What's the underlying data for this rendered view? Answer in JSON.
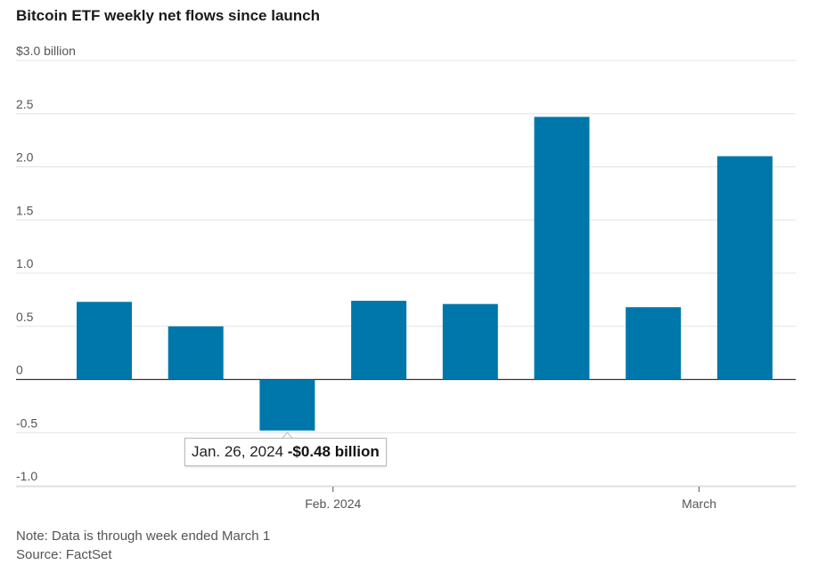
{
  "chart_data": {
    "type": "bar",
    "title": "Bitcoin ETF weekly net flows since launch",
    "ylabel": "$ billion",
    "ylim": [
      -1.0,
      3.0
    ],
    "yticks": [
      {
        "value": 3.0,
        "label": "$3.0 billion"
      },
      {
        "value": 2.5,
        "label": "2.5"
      },
      {
        "value": 2.0,
        "label": "2.0"
      },
      {
        "value": 1.5,
        "label": "1.5"
      },
      {
        "value": 1.0,
        "label": "1.0"
      },
      {
        "value": 0.5,
        "label": "0.5"
      },
      {
        "value": 0,
        "label": "0"
      },
      {
        "value": -0.5,
        "label": "-0.5"
      },
      {
        "value": -1.0,
        "label": "-1.0"
      }
    ],
    "xticks": [
      {
        "after_index": 2.5,
        "label": "Feb. 2024"
      },
      {
        "after_index": 6.5,
        "label": "March"
      }
    ],
    "series": [
      {
        "name": "Weekly net flows",
        "color": "#0077aa",
        "values": [
          0.73,
          0.5,
          -0.48,
          0.74,
          0.71,
          2.47,
          0.68,
          2.1
        ]
      }
    ],
    "tooltip": {
      "date": "Jan. 26, 2024",
      "value": "-$0.48 billion",
      "index": 2
    }
  },
  "footer": {
    "note": "Note: Data is through week ended March 1",
    "source": "Source: FactSet"
  }
}
